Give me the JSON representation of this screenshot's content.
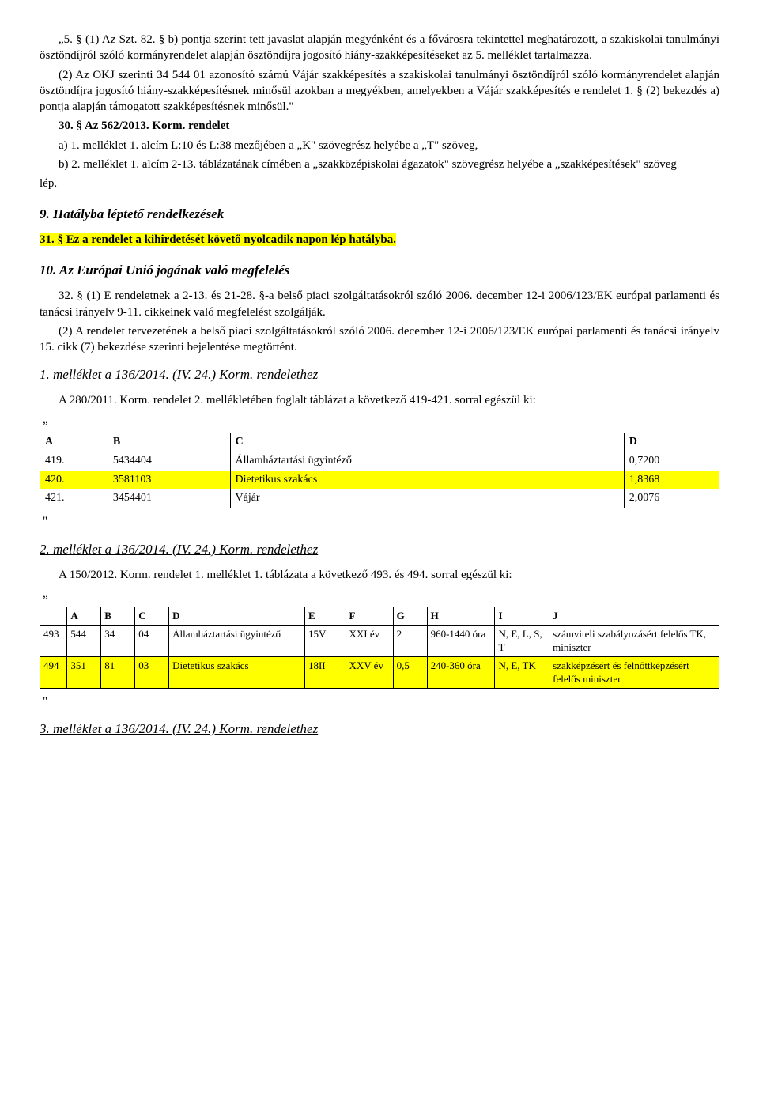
{
  "p1": "„5. § (1) Az Szt. 82. § b) pontja szerint tett javaslat alapján megyénként és a fővárosra tekintettel meghatározott, a szakiskolai tanulmányi ösztöndíjról szóló kormányrendelet alapján ösztöndíjra jogosító hiány-szakképesítéseket az 5. melléklet tartalmazza.",
  "p2": "(2) Az OKJ szerinti 34 544 01 azonosító számú Vájár szakképesítés a szakiskolai tanulmányi ösztöndíjról szóló kormányrendelet alapján ösztöndíjra jogosító hiány-szakképesítésnek minősül azokban a megyékben, amelyekben a Vájár szakképesítés e rendelet 1. § (2) bekezdés a) pontja alapján támogatott szakképesítésnek minősül.\"",
  "p3a": "30. § Az 562/2013. Korm. rendelet",
  "p3b": "a) 1. melléklet 1. alcím L:10 és L:38 mezőjében a „K\" szövegrész helyébe a „T\" szöveg,",
  "p3c": "b) 2. melléklet 1. alcím 2-13. táblázatának címében a „szakközépiskolai ágazatok\" szövegrész helyébe a „szakképesítések\" szöveg",
  "p3d": "lép.",
  "h9": "9. Hatályba léptető rendelkezések",
  "p31": "31. § Ez a rendelet a kihirdetését követő nyolcadik napon lép hatályba.",
  "h10": "10. Az Európai Unió jogának való megfelelés",
  "p32a": "32. § (1) E rendeletnek a 2-13. és 21-28. §-a belső piaci szolgáltatásokról szóló 2006. december 12-i 2006/123/EK európai parlamenti és tanácsi irányelv 9-11. cikkeinek való megfelelést szolgálják.",
  "p32b": "(2) A rendelet tervezetének a belső piaci szolgáltatásokról szóló 2006. december 12-i 2006/123/EK európai parlamenti és tanácsi irányelv 15. cikk (7) bekezdése szerinti bejelentése megtörtént.",
  "att1_head": "1. melléklet a 136/2014. (IV. 24.) Korm. rendelethez",
  "att1_intro": "A 280/2011. Korm. rendelet 2. mellékletében foglalt táblázat a következő 419-421. sorral egészül ki:",
  "t1_headers": [
    "A",
    "B",
    "C",
    "D"
  ],
  "t1_rows": [
    [
      "419.",
      "5434404",
      "Államháztartási ügyintéző",
      "0,7200"
    ],
    [
      "420.",
      "3581103",
      "Dietetikus szakács",
      "1,8368"
    ],
    [
      "421.",
      "3454401",
      "Vájár",
      "2,0076"
    ]
  ],
  "t1_hl_row": 1,
  "att2_head": "2. melléklet a 136/2014. (IV. 24.) Korm. rendelethez",
  "att2_intro": "A 150/2012. Korm. rendelet 1. melléklet 1. táblázata a következő 493. és 494. sorral egészül ki:",
  "t2_headers": [
    "",
    "A",
    "B",
    "C",
    "D",
    "E",
    "F",
    "G",
    "H",
    "I",
    "J"
  ],
  "t2_rows": [
    [
      "493",
      "544",
      "34",
      "04",
      "Államháztartási ügyintéző",
      "15V",
      "XXI év",
      "2",
      "960-1440 óra",
      "N, E, L, S, T",
      "számviteli szabályozásért felelős TK, miniszter"
    ],
    [
      "494",
      "351",
      "81",
      "03",
      "Dietetikus szakács",
      "18II",
      "XXV év",
      "0,5",
      "240-360 óra",
      "N, E, TK",
      "szakképzésért és felnőttképzésért felelős miniszter"
    ]
  ],
  "t2_hl_row": 1,
  "att3_head": "3. melléklet a 136/2014. (IV. 24.) Korm. rendelethez"
}
